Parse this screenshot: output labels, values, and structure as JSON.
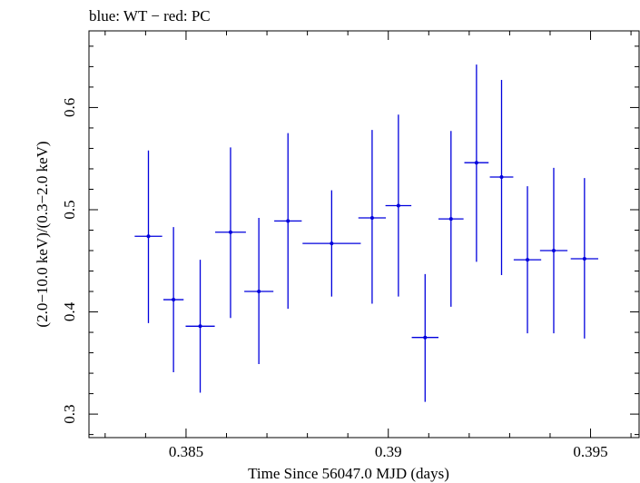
{
  "chart_data": {
    "type": "scatter",
    "title": "blue: WT − red: PC",
    "xlabel": "Time Since 56047.0 MJD (days)",
    "ylabel": "(2.0−10.0 keV)/(0.3−2.0 keV)",
    "xlim": [
      0.3826,
      0.3962
    ],
    "ylim": [
      0.277,
      0.675
    ],
    "x_ticks": [
      0.385,
      0.39,
      0.395
    ],
    "x_tick_labels": [
      "0.385",
      "0.39",
      "0.395"
    ],
    "y_ticks": [
      0.3,
      0.4,
      0.5,
      0.6
    ],
    "y_tick_labels": [
      "0.3",
      "0.4",
      "0.5",
      "0.6"
    ],
    "grid": false,
    "series": [
      {
        "color": "#0000dd",
        "points": [
          {
            "x": 0.38407,
            "xerr": 0.00034,
            "y": 0.474,
            "ylo": 0.389,
            "yhi": 0.558
          },
          {
            "x": 0.38469,
            "xerr": 0.00025,
            "y": 0.412,
            "ylo": 0.341,
            "yhi": 0.483
          },
          {
            "x": 0.38535,
            "xerr": 0.00036,
            "y": 0.386,
            "ylo": 0.321,
            "yhi": 0.451
          },
          {
            "x": 0.3861,
            "xerr": 0.00038,
            "y": 0.478,
            "ylo": 0.394,
            "yhi": 0.561
          },
          {
            "x": 0.3868,
            "xerr": 0.00036,
            "y": 0.42,
            "ylo": 0.349,
            "yhi": 0.492
          },
          {
            "x": 0.38752,
            "xerr": 0.00034,
            "y": 0.489,
            "ylo": 0.403,
            "yhi": 0.575
          },
          {
            "x": 0.3886,
            "xerr": 0.00072,
            "y": 0.467,
            "ylo": 0.415,
            "yhi": 0.519
          },
          {
            "x": 0.3896,
            "xerr": 0.00034,
            "y": 0.492,
            "ylo": 0.408,
            "yhi": 0.578
          },
          {
            "x": 0.39025,
            "xerr": 0.00032,
            "y": 0.504,
            "ylo": 0.415,
            "yhi": 0.593
          },
          {
            "x": 0.39091,
            "xerr": 0.00033,
            "y": 0.375,
            "ylo": 0.312,
            "yhi": 0.437
          },
          {
            "x": 0.39155,
            "xerr": 0.00031,
            "y": 0.491,
            "ylo": 0.405,
            "yhi": 0.577
          },
          {
            "x": 0.39218,
            "xerr": 0.0003,
            "y": 0.546,
            "ylo": 0.449,
            "yhi": 0.642
          },
          {
            "x": 0.3928,
            "xerr": 0.00029,
            "y": 0.532,
            "ylo": 0.436,
            "yhi": 0.627
          },
          {
            "x": 0.39344,
            "xerr": 0.00034,
            "y": 0.451,
            "ylo": 0.379,
            "yhi": 0.523
          },
          {
            "x": 0.39409,
            "xerr": 0.00034,
            "y": 0.46,
            "ylo": 0.379,
            "yhi": 0.541
          },
          {
            "x": 0.39485,
            "xerr": 0.00034,
            "y": 0.452,
            "ylo": 0.374,
            "yhi": 0.531
          }
        ]
      }
    ]
  }
}
